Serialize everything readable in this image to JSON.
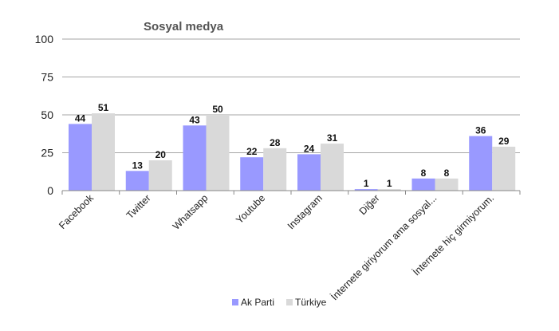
{
  "chart_data": {
    "type": "bar",
    "title": "Sosyal medya",
    "categories": [
      "Facebook",
      "Twitter",
      "Whatsapp",
      "Youtube",
      "Instagram",
      "Diğer",
      "İnternete giriyorum ama sosyal...",
      "İnternete hiç girmiyorum."
    ],
    "series": [
      {
        "name": "Ak Parti",
        "color": "#9999ff",
        "values": [
          44,
          13,
          43,
          22,
          24,
          1,
          8,
          36
        ]
      },
      {
        "name": "Türkiye",
        "color": "#d9d9d9",
        "values": [
          51,
          20,
          50,
          28,
          31,
          1,
          8,
          29
        ]
      }
    ],
    "ylim": [
      0,
      100
    ],
    "yticks": [
      0,
      25,
      50,
      75,
      100
    ],
    "grid": true,
    "legend": "bottom"
  }
}
